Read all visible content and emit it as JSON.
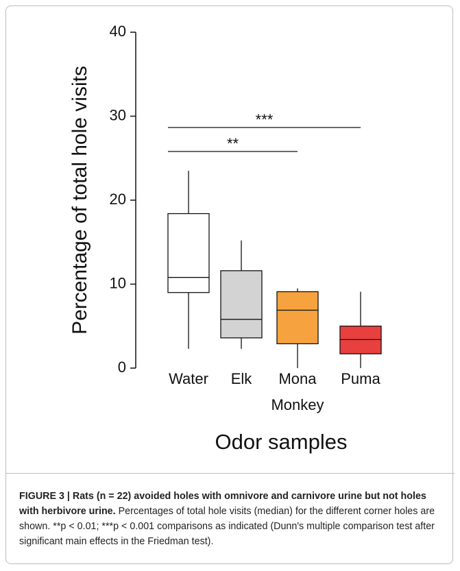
{
  "chart_data": {
    "type": "box",
    "ylabel": "Percentage of total hole visits",
    "xlabel": "Odor samples",
    "categories": [
      "Water",
      "Elk",
      "Mona Monkey",
      "Puma"
    ],
    "boxes": [
      {
        "min": 2.3,
        "q1": 9.0,
        "median": 10.8,
        "q3": 18.4,
        "max": 23.5,
        "color": "#ffffff"
      },
      {
        "min": 2.3,
        "q1": 3.6,
        "median": 5.8,
        "q3": 11.6,
        "max": 15.2,
        "color": "#d3d3d3"
      },
      {
        "min": 0,
        "q1": 2.9,
        "median": 6.9,
        "q3": 9.1,
        "max": 9.5,
        "color": "#f6a33f"
      },
      {
        "min": 0,
        "q1": 1.7,
        "median": 3.4,
        "q3": 5.0,
        "max": 9.1,
        "color": "#e8403f"
      }
    ],
    "ylim": [
      0,
      40
    ],
    "yticks": [
      0,
      10,
      20,
      30,
      40
    ],
    "annotations": [
      "**",
      "***"
    ]
  },
  "caption": {
    "title": "FIGURE 3 | Rats (n = 22) avoided holes with omnivore and carnivore urine but not holes with herbivore urine.",
    "text": "Percentages of total hole visits (median) for the different corner holes are shown. **p < 0.01; ***p < 0.001 comparisons as indicated (Dunn's multiple comparison test after significant main effects in the Friedman test)."
  }
}
